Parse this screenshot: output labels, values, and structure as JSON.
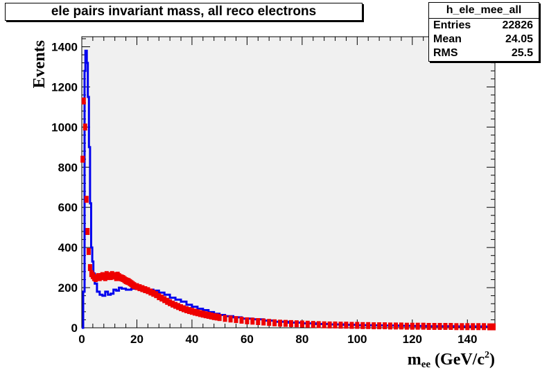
{
  "chart_data": {
    "type": "line",
    "title": "ele pairs invariant mass, all reco electrons",
    "xlabel": "m_ee (GeV/c^2)",
    "xlabel_main": "m",
    "xlabel_sub": "ee",
    "xlabel_unit": "(GeV/c",
    "xlabel_sup": "2",
    "xlabel_close": ")",
    "ylabel": "Events",
    "xlim": [
      0,
      150
    ],
    "ylim": [
      0,
      1450
    ],
    "x_ticks": [
      "0",
      "20",
      "40",
      "60",
      "80",
      "100",
      "120",
      "140"
    ],
    "y_ticks": [
      "0",
      "200",
      "400",
      "600",
      "800",
      "1000",
      "1200",
      "1400"
    ],
    "grid": false,
    "stats": {
      "name": "h_ele_mee_all",
      "entries_label": "Entries",
      "entries": "22826",
      "mean_label": "Mean",
      "mean": "24.05",
      "rms_label": "RMS",
      "rms": "25.5"
    },
    "series": [
      {
        "color": "#0000ee",
        "style": "histogram",
        "points": [
          [
            0,
            0
          ],
          [
            0.5,
            180
          ],
          [
            1,
            1280
          ],
          [
            1.3,
            1380
          ],
          [
            1.8,
            1320
          ],
          [
            2.2,
            1150
          ],
          [
            2.6,
            900
          ],
          [
            3,
            620
          ],
          [
            3.4,
            400
          ],
          [
            3.8,
            330
          ],
          [
            4.2,
            270
          ],
          [
            4.7,
            220
          ],
          [
            5.5,
            180
          ],
          [
            6.5,
            165
          ],
          [
            7.5,
            160
          ],
          [
            8.5,
            180
          ],
          [
            9.5,
            165
          ],
          [
            10.5,
            170
          ],
          [
            11.5,
            190
          ],
          [
            12.5,
            185
          ],
          [
            13.5,
            200
          ],
          [
            14.5,
            195
          ],
          [
            16,
            190
          ],
          [
            18,
            195
          ],
          [
            20,
            200
          ],
          [
            22,
            195
          ],
          [
            24,
            190
          ],
          [
            26,
            185
          ],
          [
            28,
            175
          ],
          [
            30,
            165
          ],
          [
            32,
            150
          ],
          [
            34,
            140
          ],
          [
            36,
            130
          ],
          [
            38,
            115
          ],
          [
            40,
            105
          ],
          [
            42,
            95
          ],
          [
            44,
            88
          ],
          [
            46,
            78
          ],
          [
            48,
            70
          ],
          [
            50,
            64
          ],
          [
            52,
            58
          ],
          [
            55,
            52
          ],
          [
            58,
            46
          ],
          [
            62,
            42
          ],
          [
            66,
            36
          ],
          [
            70,
            30
          ],
          [
            75,
            26
          ],
          [
            80,
            22
          ],
          [
            85,
            19
          ],
          [
            90,
            17
          ],
          [
            95,
            15
          ],
          [
            100,
            13
          ],
          [
            105,
            12
          ],
          [
            110,
            11
          ],
          [
            115,
            10
          ],
          [
            120,
            9
          ],
          [
            125,
            8
          ],
          [
            130,
            8
          ],
          [
            135,
            7
          ],
          [
            140,
            7
          ],
          [
            145,
            6
          ],
          [
            150,
            6
          ]
        ]
      },
      {
        "color": "#ee0000",
        "style": "markers",
        "points": [
          [
            0.3,
            840
          ],
          [
            0.7,
            1130
          ],
          [
            1.2,
            1000
          ],
          [
            1.7,
            640
          ],
          [
            2.1,
            480
          ],
          [
            2.5,
            380
          ],
          [
            3,
            300
          ],
          [
            3.5,
            270
          ],
          [
            4,
            260
          ],
          [
            4.5,
            250
          ],
          [
            5,
            245
          ],
          [
            5.5,
            250
          ],
          [
            6,
            255
          ],
          [
            6.5,
            250
          ],
          [
            7,
            255
          ],
          [
            7.5,
            260
          ],
          [
            8,
            255
          ],
          [
            8.5,
            250
          ],
          [
            9,
            265
          ],
          [
            9.5,
            255
          ],
          [
            10,
            260
          ],
          [
            10.5,
            255
          ],
          [
            11,
            265
          ],
          [
            11.5,
            258
          ],
          [
            12,
            260
          ],
          [
            12.5,
            250
          ],
          [
            13,
            262
          ],
          [
            13.5,
            255
          ],
          [
            14,
            250
          ],
          [
            14.5,
            248
          ],
          [
            15,
            245
          ],
          [
            15.5,
            240
          ],
          [
            16,
            235
          ],
          [
            16.5,
            232
          ],
          [
            17,
            230
          ],
          [
            17.5,
            225
          ],
          [
            18,
            220
          ],
          [
            18.5,
            215
          ],
          [
            19,
            210
          ],
          [
            20,
            205
          ],
          [
            21,
            200
          ],
          [
            22,
            195
          ],
          [
            23,
            190
          ],
          [
            24,
            185
          ],
          [
            25,
            178
          ],
          [
            26,
            172
          ],
          [
            27,
            165
          ],
          [
            28,
            155
          ],
          [
            29,
            148
          ],
          [
            30,
            140
          ],
          [
            31,
            132
          ],
          [
            32,
            125
          ],
          [
            33,
            118
          ],
          [
            34,
            112
          ],
          [
            35,
            106
          ],
          [
            36,
            100
          ],
          [
            37,
            95
          ],
          [
            38,
            90
          ],
          [
            39,
            86
          ],
          [
            40,
            82
          ],
          [
            41,
            78
          ],
          [
            42,
            75
          ],
          [
            43,
            71
          ],
          [
            44,
            68
          ],
          [
            45,
            65
          ],
          [
            46,
            62
          ],
          [
            47,
            59
          ],
          [
            48,
            56
          ],
          [
            49,
            54
          ],
          [
            50,
            51
          ],
          [
            52,
            47
          ],
          [
            54,
            44
          ],
          [
            56,
            41
          ],
          [
            58,
            38
          ],
          [
            60,
            35
          ],
          [
            62,
            33
          ],
          [
            64,
            31
          ],
          [
            66,
            29
          ],
          [
            68,
            27
          ],
          [
            70,
            25
          ],
          [
            72,
            23
          ],
          [
            74,
            22
          ],
          [
            76,
            21
          ],
          [
            78,
            20
          ],
          [
            80,
            19
          ],
          [
            82,
            18
          ],
          [
            84,
            17
          ],
          [
            86,
            16
          ],
          [
            88,
            15
          ],
          [
            90,
            14
          ],
          [
            92,
            14
          ],
          [
            94,
            13
          ],
          [
            96,
            13
          ],
          [
            98,
            12
          ],
          [
            100,
            12
          ],
          [
            102,
            11
          ],
          [
            104,
            11
          ],
          [
            106,
            10
          ],
          [
            108,
            10
          ],
          [
            110,
            10
          ],
          [
            112,
            9
          ],
          [
            114,
            9
          ],
          [
            116,
            9
          ],
          [
            118,
            8
          ],
          [
            120,
            8
          ],
          [
            122,
            8
          ],
          [
            124,
            8
          ],
          [
            126,
            7
          ],
          [
            128,
            7
          ],
          [
            130,
            7
          ],
          [
            132,
            7
          ],
          [
            134,
            7
          ],
          [
            136,
            6
          ],
          [
            138,
            6
          ],
          [
            140,
            6
          ],
          [
            142,
            6
          ],
          [
            144,
            6
          ],
          [
            146,
            6
          ],
          [
            148,
            5
          ],
          [
            149.5,
            5
          ]
        ]
      }
    ]
  }
}
